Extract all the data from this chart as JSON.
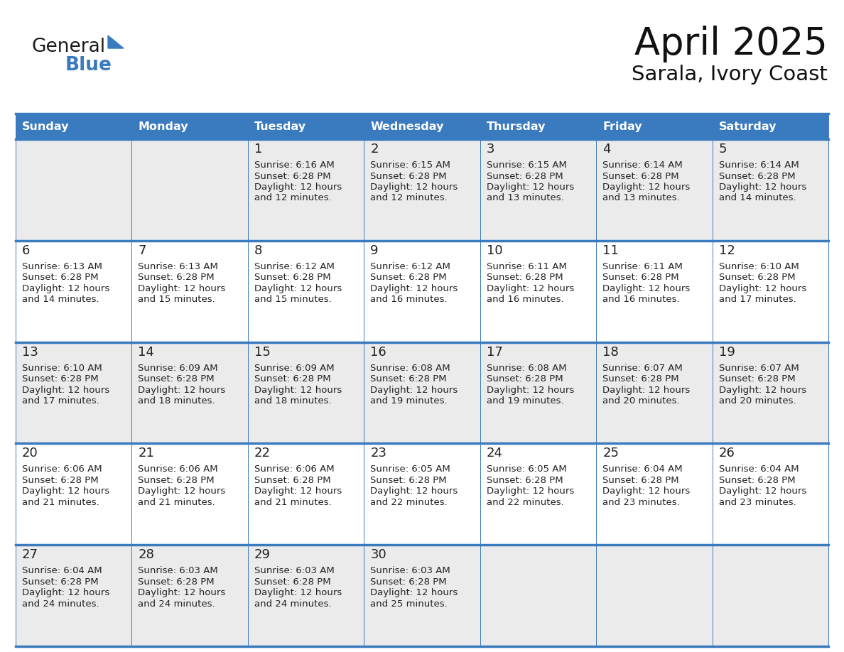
{
  "title": "April 2025",
  "subtitle": "Sarala, Ivory Coast",
  "header_bg": "#3a7abf",
  "header_text_color": "#ffffff",
  "cell_bg_odd": "#ebebeb",
  "cell_bg_even": "#ffffff",
  "border_color": "#3a7abf",
  "divider_color": "#3a7abf",
  "text_color": "#222222",
  "days_of_week": [
    "Sunday",
    "Monday",
    "Tuesday",
    "Wednesday",
    "Thursday",
    "Friday",
    "Saturday"
  ],
  "calendar": [
    [
      {
        "day": "",
        "sunrise": "",
        "sunset": "",
        "daylight_mins": ""
      },
      {
        "day": "",
        "sunrise": "",
        "sunset": "",
        "daylight_mins": ""
      },
      {
        "day": "1",
        "sunrise": "6:16 AM",
        "sunset": "6:28 PM",
        "daylight_mins": "12 minutes."
      },
      {
        "day": "2",
        "sunrise": "6:15 AM",
        "sunset": "6:28 PM",
        "daylight_mins": "12 minutes."
      },
      {
        "day": "3",
        "sunrise": "6:15 AM",
        "sunset": "6:28 PM",
        "daylight_mins": "13 minutes."
      },
      {
        "day": "4",
        "sunrise": "6:14 AM",
        "sunset": "6:28 PM",
        "daylight_mins": "13 minutes."
      },
      {
        "day": "5",
        "sunrise": "6:14 AM",
        "sunset": "6:28 PM",
        "daylight_mins": "14 minutes."
      }
    ],
    [
      {
        "day": "6",
        "sunrise": "6:13 AM",
        "sunset": "6:28 PM",
        "daylight_mins": "14 minutes."
      },
      {
        "day": "7",
        "sunrise": "6:13 AM",
        "sunset": "6:28 PM",
        "daylight_mins": "15 minutes."
      },
      {
        "day": "8",
        "sunrise": "6:12 AM",
        "sunset": "6:28 PM",
        "daylight_mins": "15 minutes."
      },
      {
        "day": "9",
        "sunrise": "6:12 AM",
        "sunset": "6:28 PM",
        "daylight_mins": "16 minutes."
      },
      {
        "day": "10",
        "sunrise": "6:11 AM",
        "sunset": "6:28 PM",
        "daylight_mins": "16 minutes."
      },
      {
        "day": "11",
        "sunrise": "6:11 AM",
        "sunset": "6:28 PM",
        "daylight_mins": "16 minutes."
      },
      {
        "day": "12",
        "sunrise": "6:10 AM",
        "sunset": "6:28 PM",
        "daylight_mins": "17 minutes."
      }
    ],
    [
      {
        "day": "13",
        "sunrise": "6:10 AM",
        "sunset": "6:28 PM",
        "daylight_mins": "17 minutes."
      },
      {
        "day": "14",
        "sunrise": "6:09 AM",
        "sunset": "6:28 PM",
        "daylight_mins": "18 minutes."
      },
      {
        "day": "15",
        "sunrise": "6:09 AM",
        "sunset": "6:28 PM",
        "daylight_mins": "18 minutes."
      },
      {
        "day": "16",
        "sunrise": "6:08 AM",
        "sunset": "6:28 PM",
        "daylight_mins": "19 minutes."
      },
      {
        "day": "17",
        "sunrise": "6:08 AM",
        "sunset": "6:28 PM",
        "daylight_mins": "19 minutes."
      },
      {
        "day": "18",
        "sunrise": "6:07 AM",
        "sunset": "6:28 PM",
        "daylight_mins": "20 minutes."
      },
      {
        "day": "19",
        "sunrise": "6:07 AM",
        "sunset": "6:28 PM",
        "daylight_mins": "20 minutes."
      }
    ],
    [
      {
        "day": "20",
        "sunrise": "6:06 AM",
        "sunset": "6:28 PM",
        "daylight_mins": "21 minutes."
      },
      {
        "day": "21",
        "sunrise": "6:06 AM",
        "sunset": "6:28 PM",
        "daylight_mins": "21 minutes."
      },
      {
        "day": "22",
        "sunrise": "6:06 AM",
        "sunset": "6:28 PM",
        "daylight_mins": "21 minutes."
      },
      {
        "day": "23",
        "sunrise": "6:05 AM",
        "sunset": "6:28 PM",
        "daylight_mins": "22 minutes."
      },
      {
        "day": "24",
        "sunrise": "6:05 AM",
        "sunset": "6:28 PM",
        "daylight_mins": "22 minutes."
      },
      {
        "day": "25",
        "sunrise": "6:04 AM",
        "sunset": "6:28 PM",
        "daylight_mins": "23 minutes."
      },
      {
        "day": "26",
        "sunrise": "6:04 AM",
        "sunset": "6:28 PM",
        "daylight_mins": "23 minutes."
      }
    ],
    [
      {
        "day": "27",
        "sunrise": "6:04 AM",
        "sunset": "6:28 PM",
        "daylight_mins": "24 minutes."
      },
      {
        "day": "28",
        "sunrise": "6:03 AM",
        "sunset": "6:28 PM",
        "daylight_mins": "24 minutes."
      },
      {
        "day": "29",
        "sunrise": "6:03 AM",
        "sunset": "6:28 PM",
        "daylight_mins": "24 minutes."
      },
      {
        "day": "30",
        "sunrise": "6:03 AM",
        "sunset": "6:28 PM",
        "daylight_mins": "25 minutes."
      },
      {
        "day": "",
        "sunrise": "",
        "sunset": "",
        "daylight_mins": ""
      },
      {
        "day": "",
        "sunrise": "",
        "sunset": "",
        "daylight_mins": ""
      },
      {
        "day": "",
        "sunrise": "",
        "sunset": "",
        "daylight_mins": ""
      }
    ]
  ],
  "logo_general_color": "#1a1a1a",
  "logo_blue_color": "#3a7abf",
  "logo_triangle_color": "#3a7abf"
}
